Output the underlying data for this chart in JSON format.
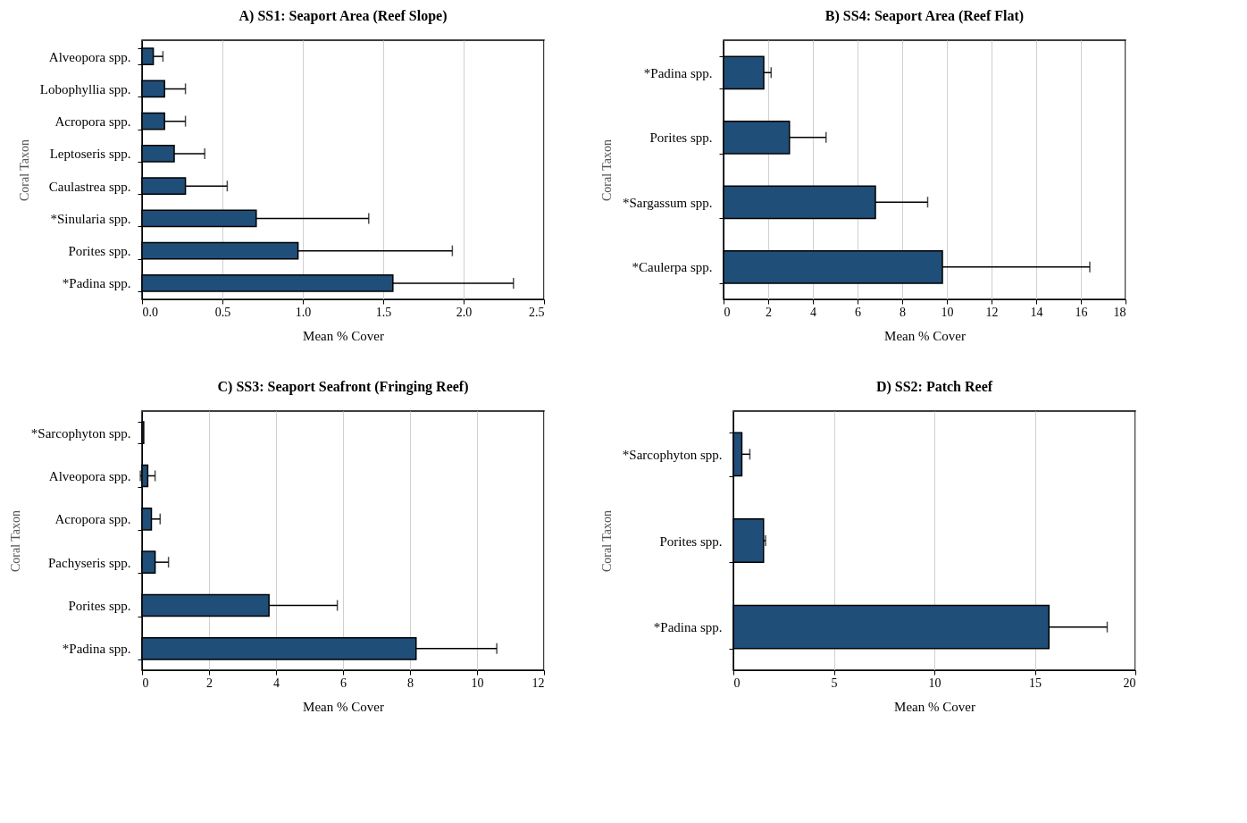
{
  "chart_data": [
    {
      "type": "bar",
      "orientation": "horizontal",
      "title": "A) SS1: Seaport Area (Reef Slope)",
      "xlabel": "Mean % Cover",
      "ylabel": "Coral Taxon",
      "categories": [
        "Alveopora spp.",
        "Lobophyllia spp.",
        "Acropora spp.",
        "Leptoseris spp.",
        "Caulastrea spp.",
        "*Sinularia spp.",
        "Porites spp.",
        "*Padina spp."
      ],
      "values": [
        0.07,
        0.14,
        0.14,
        0.2,
        0.27,
        0.71,
        0.97,
        1.56
      ],
      "errors": [
        0.06,
        0.13,
        0.13,
        0.19,
        0.26,
        0.7,
        0.96,
        0.75
      ],
      "color": "#1f4e79",
      "xlim": [
        0,
        2.5
      ],
      "xticks": [
        {
          "value": 0,
          "label": "0.0"
        },
        0.5,
        {
          "value": 1,
          "label": "1.0"
        },
        1.5,
        {
          "value": 2,
          "label": "2.0"
        },
        2.5
      ],
      "grid": "x"
    },
    {
      "type": "bar",
      "orientation": "horizontal",
      "title": "B) SS4: Seaport Area (Reef Flat)",
      "xlabel": "Mean % Cover",
      "ylabel": "Coral Taxon",
      "categories": [
        "*Padina spp.",
        "Porites spp.",
        "*Sargassum spp.",
        "*Caulerpa spp."
      ],
      "values": [
        1.8,
        2.95,
        6.8,
        9.8
      ],
      "errors": [
        0.33,
        1.64,
        2.34,
        6.6
      ],
      "color": "#1f4e79",
      "xlim": [
        0,
        18
      ],
      "xticks": [
        0,
        2,
        4,
        6,
        8,
        10,
        12,
        14,
        16,
        18
      ],
      "grid": "x"
    },
    {
      "type": "bar",
      "orientation": "horizontal",
      "title": "C) SS3: Seaport Seafront (Fringing Reef)",
      "xlabel": "Mean % Cover",
      "ylabel": "Coral Taxon",
      "categories": [
        "*Sarcophyton spp.",
        "Alveopora spp.",
        "Acropora spp.",
        "Pachyseris spp.",
        "Porites spp.",
        "*Padina spp."
      ],
      "values": [
        0.05,
        0.17,
        0.28,
        0.39,
        3.79,
        8.18
      ],
      "errors": [
        null,
        0.22,
        0.26,
        0.4,
        2.04,
        2.41
      ],
      "color": "#1f4e79",
      "xlim": [
        0,
        12
      ],
      "xticks": [
        0,
        2,
        4,
        6,
        8,
        10,
        12
      ],
      "grid": "x"
    },
    {
      "type": "bar",
      "orientation": "horizontal",
      "title": "D) SS2: Patch Reef",
      "xlabel": "Mean % Cover",
      "ylabel": "Coral Taxon",
      "categories": [
        "*Sarcophyton spp.",
        "Porites spp.",
        "*Padina spp."
      ],
      "values": [
        0.42,
        1.5,
        15.7
      ],
      "errors": [
        0.4,
        0.1,
        2.9
      ],
      "color": "#1f4e79",
      "xlim": [
        0,
        20
      ],
      "xticks": [
        0,
        5,
        10,
        15,
        20
      ],
      "grid": "x"
    }
  ]
}
